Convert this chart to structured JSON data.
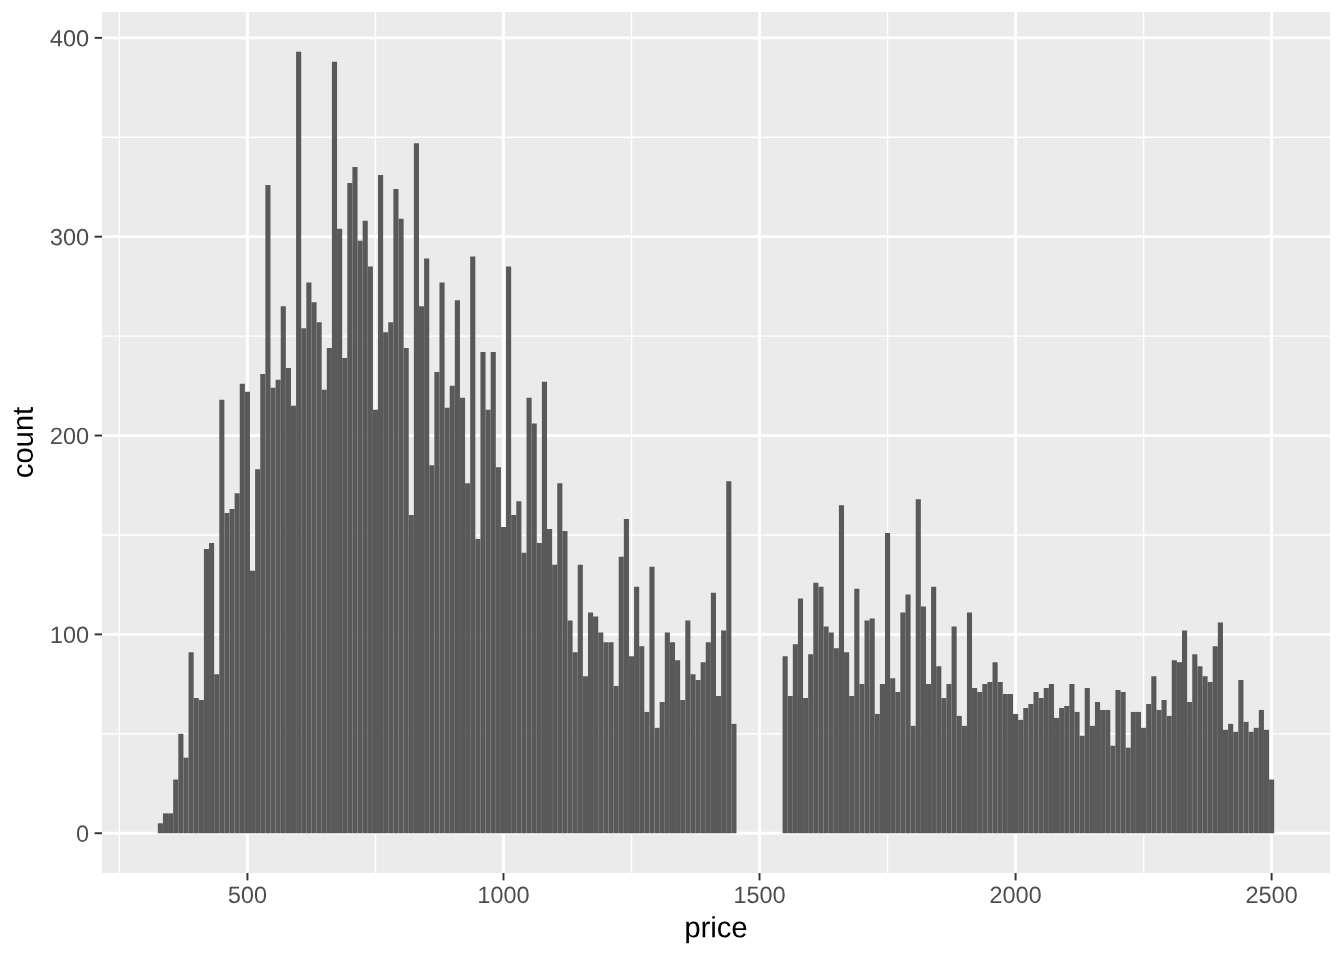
{
  "chart_data": {
    "type": "histogram",
    "xlabel": "price",
    "ylabel": "count",
    "color": "#595959",
    "bins": [
      325,
      335,
      345,
      355,
      365,
      375,
      385,
      395,
      405,
      415,
      425,
      435,
      445,
      455,
      465,
      475,
      485,
      495,
      505,
      515,
      525,
      535,
      545,
      555,
      565,
      575,
      585,
      595,
      605,
      615,
      625,
      635,
      645,
      655,
      665,
      675,
      685,
      695,
      705,
      715,
      725,
      735,
      745,
      755,
      765,
      775,
      785,
      795,
      805,
      815,
      825,
      835,
      845,
      855,
      865,
      875,
      885,
      895,
      905,
      915,
      925,
      935,
      945,
      955,
      965,
      975,
      985,
      995,
      1005,
      1015,
      1025,
      1035,
      1045,
      1055,
      1065,
      1075,
      1085,
      1095,
      1105,
      1115,
      1125,
      1135,
      1145,
      1155,
      1165,
      1175,
      1185,
      1195,
      1205,
      1215,
      1225,
      1235,
      1245,
      1255,
      1265,
      1275,
      1285,
      1295,
      1305,
      1315,
      1325,
      1335,
      1345,
      1355,
      1365,
      1375,
      1385,
      1395,
      1405,
      1415,
      1425,
      1435,
      1445,
      1455,
      1465,
      1475,
      1485,
      1495,
      1505,
      1515,
      1525,
      1535,
      1545,
      1555,
      1565,
      1575,
      1585,
      1595,
      1605,
      1615,
      1625,
      1635,
      1645,
      1655,
      1665,
      1675,
      1685,
      1695,
      1705,
      1715,
      1725,
      1735,
      1745,
      1755,
      1765,
      1775,
      1785,
      1795,
      1805,
      1815,
      1825,
      1835,
      1845,
      1855,
      1865,
      1875,
      1885,
      1895,
      1905,
      1915,
      1925,
      1935,
      1945,
      1955,
      1965,
      1975,
      1985,
      1995,
      2005,
      2015,
      2025,
      2035,
      2045,
      2055,
      2065,
      2075,
      2085,
      2095,
      2105,
      2115,
      2125,
      2135,
      2145,
      2155,
      2165,
      2175,
      2185,
      2195,
      2205,
      2215,
      2225,
      2235,
      2245,
      2255,
      2265,
      2275,
      2285,
      2295,
      2305,
      2315,
      2325,
      2335,
      2345,
      2355,
      2365,
      2375,
      2385,
      2395,
      2405,
      2415,
      2425,
      2435,
      2445,
      2455,
      2465,
      2475,
      2485,
      2495,
      2505
    ],
    "values": [
      5,
      10,
      10,
      27,
      50,
      38,
      91,
      68,
      67,
      143,
      146,
      80,
      218,
      161,
      163,
      171,
      226,
      222,
      132,
      183,
      231,
      326,
      224,
      228,
      265,
      234,
      215,
      393,
      254,
      277,
      267,
      257,
      223,
      244,
      388,
      304,
      239,
      327,
      335,
      298,
      308,
      285,
      213,
      331,
      252,
      257,
      324,
      309,
      244,
      160,
      347,
      265,
      289,
      185,
      232,
      277,
      214,
      225,
      268,
      219,
      176,
      290,
      148,
      242,
      213,
      242,
      184,
      154,
      285,
      160,
      167,
      141,
      219,
      206,
      146,
      227,
      153,
      135,
      176,
      152,
      107,
      91,
      135,
      79,
      111,
      109,
      101,
      96,
      96,
      74,
      139,
      158,
      89,
      124,
      94,
      61,
      134,
      53,
      66,
      101,
      96,
      87,
      67,
      107,
      80,
      77,
      86,
      96,
      121,
      69,
      102,
      177,
      55,
      0,
      0,
      0,
      0,
      0,
      0,
      0,
      0,
      0,
      89,
      69,
      95,
      118,
      68,
      90,
      126,
      124,
      104,
      101,
      93,
      165,
      91,
      69,
      123,
      75,
      107,
      108,
      60,
      75,
      151,
      78,
      71,
      111,
      120,
      54,
      168,
      114,
      75,
      124,
      84,
      68,
      75,
      104,
      59,
      54,
      111,
      73,
      71,
      75,
      76,
      86,
      76,
      70,
      70,
      60,
      57,
      63,
      65,
      71,
      68,
      73,
      75,
      58,
      63,
      64,
      75,
      61,
      49,
      73,
      54,
      66,
      62,
      62,
      44,
      72,
      71,
      43,
      61,
      61,
      53,
      65,
      79,
      62,
      67,
      59,
      87,
      86,
      102,
      66,
      90,
      84,
      79,
      76,
      94,
      106,
      52,
      55,
      51,
      77,
      56,
      51,
      53,
      62,
      52,
      27
    ],
    "xlim": [
      216,
      2614
    ],
    "ylim": [
      -20,
      413
    ],
    "xticks": [
      500,
      1000,
      1500,
      2000,
      2500
    ],
    "yticks": [
      0,
      100,
      200,
      300,
      400
    ],
    "grid": true
  }
}
